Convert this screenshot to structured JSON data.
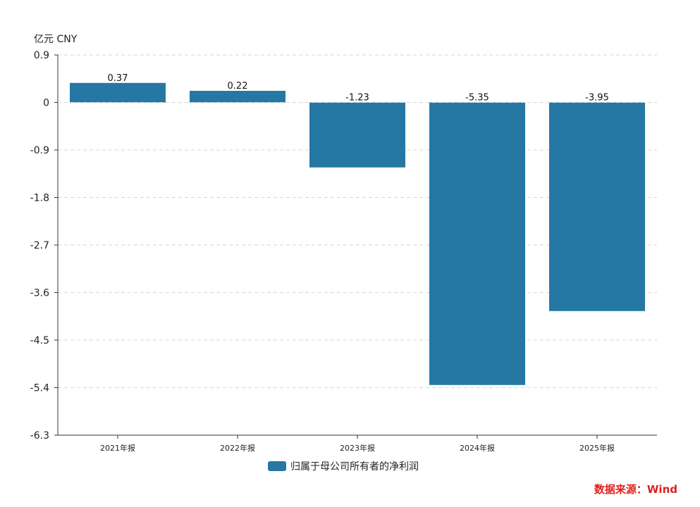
{
  "unit_label": "亿元  CNY",
  "source_text": "数据来源：Wind",
  "source_color": "#e0201c",
  "bar_color": "#2478a3",
  "chart_data": {
    "type": "bar",
    "categories": [
      "2021年报",
      "2022年报",
      "2023年报",
      "2024年报",
      "2025年报"
    ],
    "series": [
      {
        "name": "归属于母公司所有者的净利润",
        "values": [
          0.37,
          0.22,
          -1.23,
          -5.35,
          -3.95
        ]
      }
    ],
    "data_labels": [
      "0.37",
      "0.22",
      "-1.23",
      "-5.35",
      "-3.95"
    ],
    "ylim": [
      -6.3,
      0.9
    ],
    "yticks": [
      0.9,
      0,
      -0.9,
      -1.8,
      -2.7,
      -3.6,
      -4.5,
      -5.4,
      -6.3
    ],
    "ytick_labels": [
      "0.9",
      "0",
      "-0.9",
      "-1.8",
      "-2.7",
      "-3.6",
      "-4.5",
      "-5.4",
      "-6.3"
    ],
    "grid": true,
    "legend_position": "bottom"
  }
}
